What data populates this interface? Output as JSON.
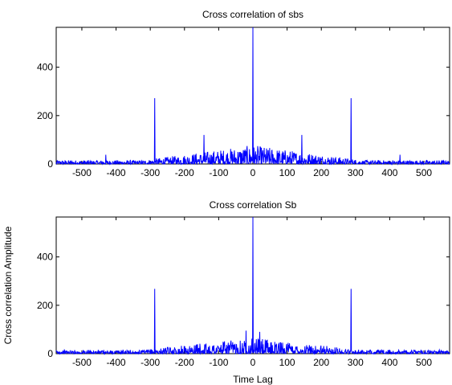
{
  "chart_data": [
    {
      "type": "line",
      "title": "Cross correlation of sbs",
      "xlabel": "",
      "ylabel": "",
      "xlim": [
        -575,
        575
      ],
      "ylim": [
        0,
        565
      ],
      "grid": false,
      "color": "#0000ff",
      "xticks": [
        -500,
        -400,
        -300,
        -200,
        -100,
        0,
        100,
        200,
        300,
        400,
        500
      ],
      "yticks": [
        0,
        200,
        400
      ],
      "peaks": [
        {
          "x": -287,
          "y": 272
        },
        {
          "x": -143,
          "y": 120
        },
        {
          "x": 0,
          "y": 565
        },
        {
          "x": 143,
          "y": 120
        },
        {
          "x": 287,
          "y": 272
        },
        {
          "x": -430,
          "y": 38
        },
        {
          "x": 430,
          "y": 38
        }
      ],
      "noise_level_center": 60,
      "noise_level_edge": 12
    },
    {
      "type": "line",
      "title": "Cross correlation Sb",
      "xlabel": "Time Lag",
      "ylabel": "Cross correlation Amplitude",
      "xlim": [
        -575,
        575
      ],
      "ylim": [
        0,
        565
      ],
      "grid": false,
      "color": "#0000ff",
      "xticks": [
        -500,
        -400,
        -300,
        -200,
        -100,
        0,
        100,
        200,
        300,
        400,
        500
      ],
      "yticks": [
        0,
        200,
        400
      ],
      "peaks": [
        {
          "x": -287,
          "y": 268
        },
        {
          "x": 0,
          "y": 565
        },
        {
          "x": 287,
          "y": 268
        },
        {
          "x": -20,
          "y": 95
        },
        {
          "x": 20,
          "y": 90
        }
      ],
      "noise_level_center": 50,
      "noise_level_edge": 12
    }
  ]
}
